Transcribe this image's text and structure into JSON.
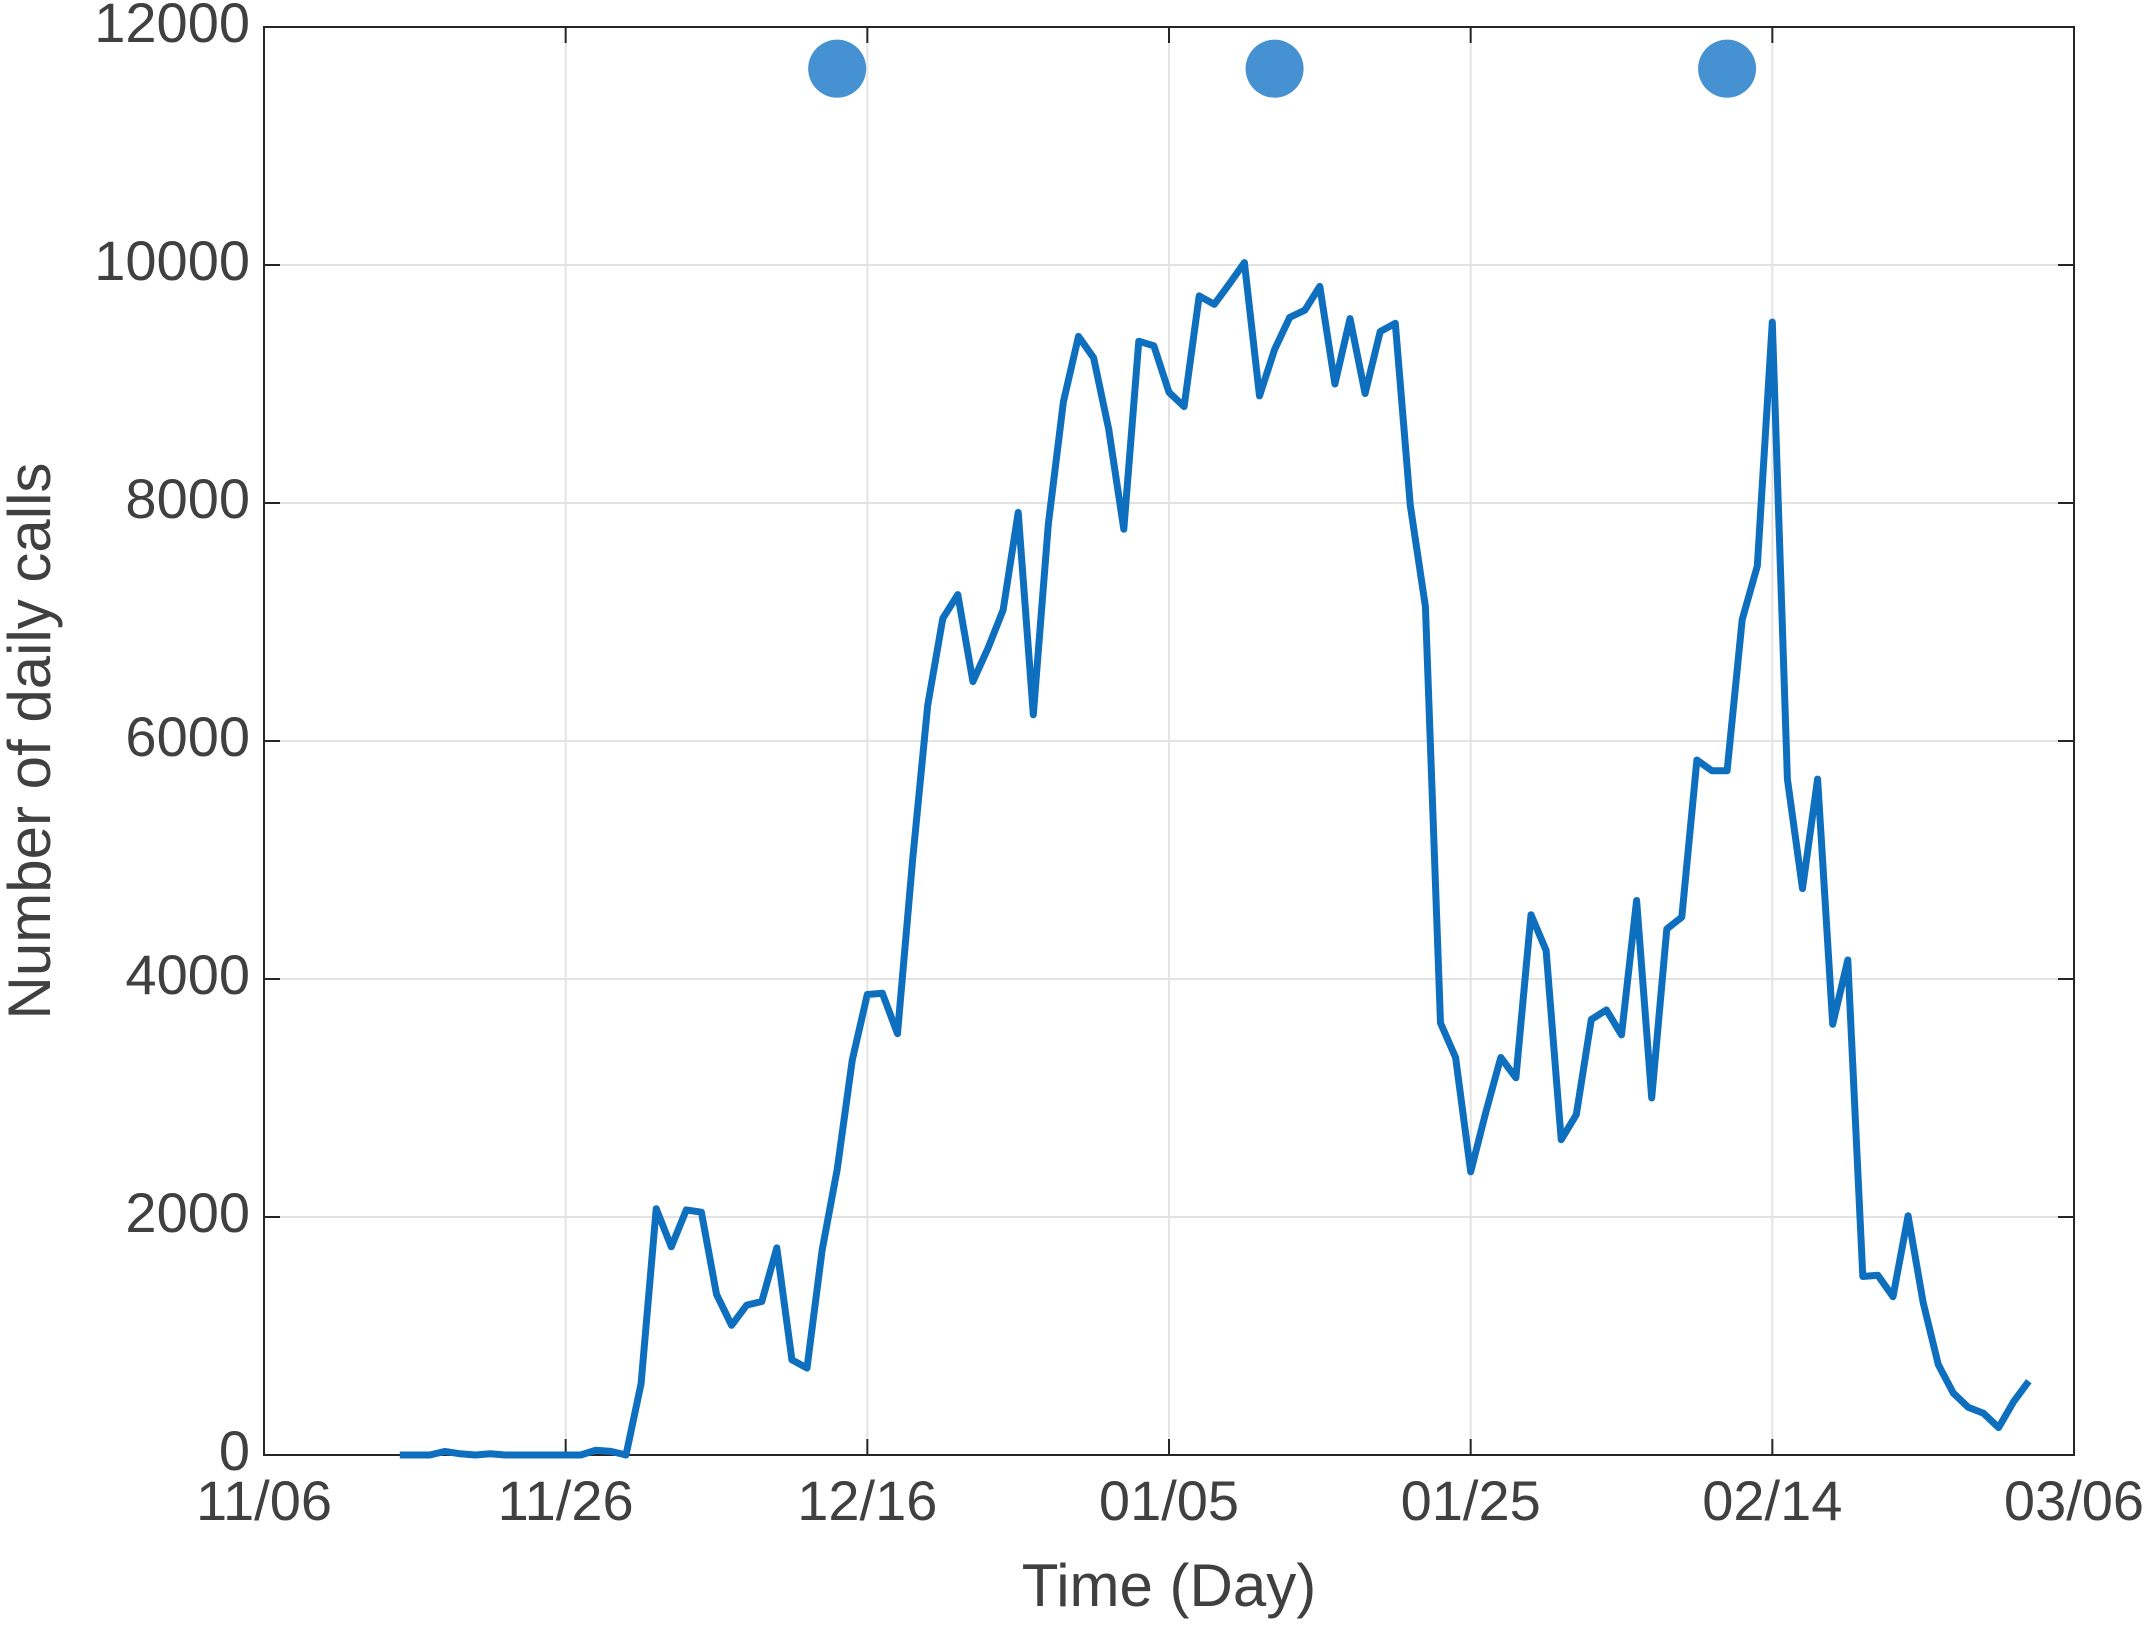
{
  "chart_data": {
    "type": "line",
    "xlabel": "Time (Day)",
    "ylabel": "Number of daily calls",
    "xlim": [
      "11/06",
      "03/06"
    ],
    "xticks": [
      "11/06",
      "11/26",
      "12/16",
      "01/05",
      "01/25",
      "02/14",
      "03/06"
    ],
    "ylim": [
      0,
      12000
    ],
    "yticks": [
      0,
      2000,
      4000,
      6000,
      8000,
      10000,
      12000
    ],
    "grid": true,
    "series": [
      {
        "color": "#0f6fbf",
        "x": [
          "11/15",
          "11/16",
          "11/17",
          "11/18",
          "11/19",
          "11/20",
          "11/21",
          "11/22",
          "11/23",
          "11/24",
          "11/25",
          "11/26",
          "11/27",
          "11/28",
          "11/29",
          "11/30",
          "12/01",
          "12/02",
          "12/03",
          "12/04",
          "12/05",
          "12/06",
          "12/07",
          "12/08",
          "12/09",
          "12/10",
          "12/11",
          "12/12",
          "12/13",
          "12/14",
          "12/15",
          "12/16",
          "12/17",
          "12/18",
          "12/19",
          "12/20",
          "12/21",
          "12/22",
          "12/23",
          "12/24",
          "12/25",
          "12/26",
          "12/27",
          "12/28",
          "12/29",
          "12/30",
          "12/31",
          "01/01",
          "01/02",
          "01/03",
          "01/04",
          "01/05",
          "01/06",
          "01/07",
          "01/08",
          "01/09",
          "01/10",
          "01/11",
          "01/12",
          "01/13",
          "01/14",
          "01/15",
          "01/16",
          "01/17",
          "01/18",
          "01/19",
          "01/20",
          "01/21",
          "01/22",
          "01/23",
          "01/24",
          "01/25",
          "01/26",
          "01/27",
          "01/28",
          "01/29",
          "01/30",
          "01/31",
          "02/01",
          "02/02",
          "02/03",
          "02/04",
          "02/05",
          "02/06",
          "02/07",
          "02/08",
          "02/09",
          "02/10",
          "02/11",
          "02/12",
          "02/13",
          "02/14",
          "02/15",
          "02/16",
          "02/17",
          "02/18",
          "02/19",
          "02/20",
          "02/21",
          "02/22",
          "02/23",
          "02/24",
          "02/25",
          "02/26",
          "02/27",
          "02/28",
          "03/01",
          "03/02",
          "03/03"
        ],
        "values": [
          0,
          0,
          0,
          30,
          10,
          0,
          10,
          0,
          0,
          0,
          0,
          0,
          0,
          40,
          30,
          0,
          600,
          2070,
          1750,
          2060,
          2040,
          1350,
          1090,
          1260,
          1290,
          1740,
          800,
          730,
          1720,
          2400,
          3320,
          3870,
          3880,
          3540,
          5000,
          6300,
          7030,
          7230,
          6500,
          6780,
          7100,
          7920,
          6220,
          7820,
          8850,
          9400,
          9220,
          8620,
          7780,
          9360,
          9320,
          8930,
          8810,
          9740,
          9670,
          9840,
          10020,
          8900,
          9290,
          9560,
          9620,
          9820,
          9000,
          9550,
          8920,
          9440,
          9510,
          7980,
          7130,
          3630,
          3340,
          2380,
          2880,
          3340,
          3170,
          4540,
          4240,
          2650,
          2860,
          3660,
          3740,
          3530,
          4660,
          3000,
          4420,
          4520,
          5840,
          5750,
          5750,
          7020,
          7470,
          9520,
          5680,
          4760,
          5680,
          3620,
          4160,
          1500,
          1510,
          1330,
          2010,
          1280,
          760,
          520,
          400,
          350,
          230,
          450,
          620
        ]
      }
    ],
    "markers": {
      "color": "#4591d1",
      "x": [
        "12/14",
        "01/12",
        "02/11"
      ],
      "values": [
        11650,
        11650,
        11650
      ]
    }
  }
}
